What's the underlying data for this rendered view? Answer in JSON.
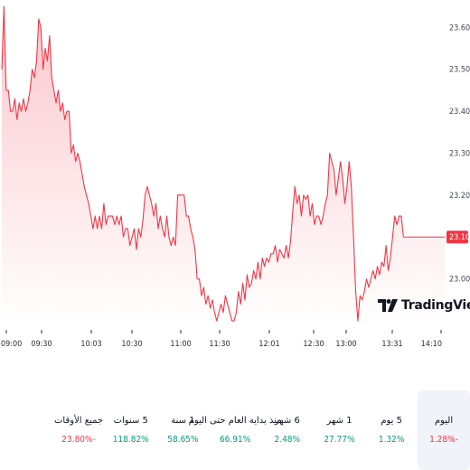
{
  "chart_data": {
    "type": "area",
    "x_ticks": [
      "09:00",
      "09:30",
      "10:03",
      "10:30",
      "11:00",
      "11:30",
      "12:01",
      "12:30",
      "13:00",
      "13:31",
      "14:10"
    ],
    "y_ticks": [
      "23.60",
      "23.50",
      "23.40",
      "23.30",
      "23.20",
      "23.10",
      "23.00"
    ],
    "ylim": [
      22.885,
      23.648
    ],
    "last_price_label": "23.10",
    "x": [
      0,
      1,
      2,
      3,
      4,
      5,
      6,
      7,
      8,
      9,
      10,
      11,
      12,
      13,
      14,
      15,
      16,
      17,
      18,
      19,
      20,
      21,
      22,
      23,
      24,
      25,
      26,
      27,
      28,
      29,
      30,
      31,
      32,
      33,
      34,
      35,
      36,
      37,
      38,
      39,
      40,
      41,
      42,
      43,
      44,
      45,
      46,
      47,
      48,
      49,
      50,
      51,
      52,
      53,
      54,
      55,
      56,
      57,
      58,
      59,
      60,
      61,
      62,
      63,
      64,
      65,
      66,
      67,
      68,
      69,
      70,
      71,
      72,
      73,
      74,
      75,
      76,
      77,
      78,
      79,
      80,
      81,
      82,
      83,
      84,
      85,
      86,
      87,
      88,
      89,
      90,
      91,
      92,
      93,
      94,
      95,
      96,
      97,
      98,
      99,
      100,
      101,
      102,
      103,
      104,
      105,
      106,
      107,
      108,
      109,
      110,
      111,
      112,
      113,
      114,
      115,
      116,
      117,
      118,
      119,
      120,
      121,
      122,
      123,
      124,
      125,
      126,
      127,
      128,
      129,
      130,
      131,
      132,
      133,
      134,
      135,
      136,
      137,
      138,
      139,
      140,
      141,
      142,
      143,
      144,
      145,
      146,
      147,
      148,
      149,
      150,
      151,
      152,
      153,
      154,
      155,
      156,
      157,
      158,
      159,
      160,
      161,
      162,
      163,
      164,
      165,
      166,
      167,
      168,
      169,
      170,
      171,
      172,
      173,
      174,
      175,
      176,
      177,
      178,
      179,
      180,
      181,
      182,
      183,
      184,
      185,
      186,
      187,
      188,
      189,
      190,
      191,
      192,
      193,
      194,
      195,
      196,
      197,
      198,
      199,
      200,
      201,
      202,
      203,
      204
    ],
    "values": [
      23.5,
      23.65,
      23.45,
      23.45,
      23.4,
      23.4,
      23.43,
      23.38,
      23.42,
      23.4,
      23.43,
      23.4,
      23.42,
      23.45,
      23.5,
      23.48,
      23.52,
      23.62,
      23.6,
      23.5,
      23.55,
      23.52,
      23.58,
      23.48,
      23.45,
      23.42,
      23.45,
      23.4,
      23.42,
      23.38,
      23.4,
      23.4,
      23.3,
      23.32,
      23.28,
      23.3,
      23.28,
      23.25,
      23.22,
      23.2,
      23.18,
      23.15,
      23.12,
      23.15,
      23.12,
      23.15,
      23.12,
      23.18,
      23.13,
      23.15,
      23.15,
      23.15,
      23.13,
      23.15,
      23.13,
      23.15,
      23.1,
      23.12,
      23.12,
      23.08,
      23.1,
      23.12,
      23.07,
      23.12,
      23.1,
      23.14,
      23.2,
      23.22,
      23.2,
      23.18,
      23.15,
      23.18,
      23.12,
      23.15,
      23.12,
      23.1,
      23.15,
      23.1,
      23.08,
      23.1,
      23.08,
      23.2,
      23.2,
      23.2,
      23.2,
      23.15,
      23.15,
      23.12,
      23.1,
      23.07,
      23.0,
      23.0,
      22.96,
      22.98,
      22.94,
      22.96,
      22.93,
      22.95,
      22.92,
      22.9,
      22.92,
      22.94,
      22.92,
      22.96,
      22.94,
      22.92,
      22.9,
      22.9,
      22.92,
      22.97,
      22.94,
      22.99,
      22.95,
      23.01,
      22.98,
      22.99,
      23.02,
      23.0,
      23.04,
      23.0,
      23.05,
      23.03,
      23.05,
      23.04,
      23.06,
      23.06,
      23.08,
      23.04,
      23.07,
      23.06,
      23.05,
      23.08,
      23.05,
      23.09,
      23.16,
      23.22,
      23.18,
      23.2,
      23.15,
      23.2,
      23.19,
      23.2,
      23.15,
      23.18,
      23.13,
      23.15,
      23.15,
      23.13,
      23.15,
      23.18,
      23.2,
      23.3,
      23.28,
      23.26,
      23.2,
      23.24,
      23.28,
      23.24,
      23.18,
      23.22,
      23.28,
      23.22,
      23.1,
      22.97,
      22.9,
      22.96,
      22.95,
      22.97,
      23.0,
      22.98,
      23.0,
      23.02,
      23.0,
      23.03,
      23.01,
      23.04,
      23.03,
      23.08,
      23.02,
      23.05,
      23.1,
      23.15,
      23.13,
      23.15,
      23.15,
      23.1,
      23.1,
      23.1,
      23.1,
      23.1,
      23.1,
      23.1,
      23.1,
      23.1,
      23.1,
      23.1,
      23.1,
      23.1,
      23.1,
      23.1,
      23.1,
      23.1,
      23.1,
      23.1,
      23.1
    ],
    "colors": {
      "line": "#f23645",
      "fill_top": "#fbc2c8",
      "fill_bottom": "#ffffff"
    }
  },
  "watermark": {
    "text": "TradingView"
  },
  "performance": {
    "periods": [
      {
        "label": "اليوم",
        "value": "1.28%-",
        "direction": "down",
        "active": true
      },
      {
        "label": "5 يوم",
        "value": "1.32%",
        "direction": "up",
        "active": false
      },
      {
        "label": "1 شهر",
        "value": "27.77%",
        "direction": "up",
        "active": false
      },
      {
        "label": "6 شهر",
        "value": "2.48%",
        "direction": "up",
        "active": false
      },
      {
        "label": "منذ بداية العام حتى اليوم",
        "value": "66.91%",
        "direction": "up",
        "active": false
      },
      {
        "label": "1 سنة",
        "value": "58.65%",
        "direction": "up",
        "active": false
      },
      {
        "label": "5 سنوات",
        "value": "118.82%",
        "direction": "up",
        "active": false
      },
      {
        "label": "جميع الأوقات",
        "value": "23.80%-",
        "direction": "down",
        "active": false
      }
    ],
    "colors": {
      "up": "#089981",
      "down": "#f23645"
    }
  }
}
